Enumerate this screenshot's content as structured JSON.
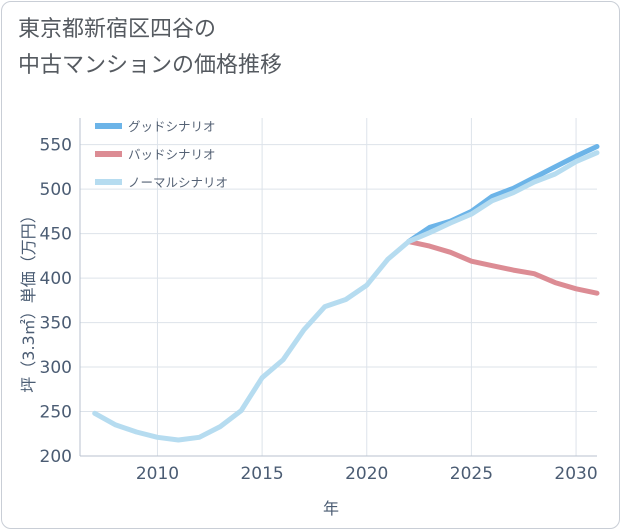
{
  "title_line1": "東京都新宿区四谷の",
  "title_line2": "中古マンションの価格推移",
  "chart_data": {
    "type": "line",
    "xlabel": "年",
    "ylabel": "坪（3.3㎡）単価（万円）",
    "xlim": [
      2006.3,
      2031
    ],
    "ylim": [
      200,
      580
    ],
    "xticks": [
      2010,
      2015,
      2020,
      2025,
      2030
    ],
    "yticks": [
      200,
      250,
      300,
      350,
      400,
      450,
      500,
      550
    ],
    "grid": true,
    "legend_position": "top-left",
    "series": [
      {
        "name": "グッドシナリオ",
        "color": "#6cb4e8",
        "x": [
          2022,
          2023,
          2024,
          2025,
          2026,
          2027,
          2028,
          2029,
          2030,
          2031
        ],
        "y": [
          441,
          457,
          464,
          475,
          492,
          501,
          513,
          525,
          537,
          548
        ]
      },
      {
        "name": "バッドシナリオ",
        "color": "#dc8c94",
        "x": [
          2022,
          2023,
          2024,
          2025,
          2026,
          2027,
          2028,
          2029,
          2030,
          2031
        ],
        "y": [
          441,
          436,
          429,
          419,
          414,
          409,
          405,
          395,
          388,
          383
        ]
      },
      {
        "name": "ノーマルシナリオ",
        "color": "#b6dcf0",
        "x": [
          2007,
          2008,
          2009,
          2010,
          2011,
          2012,
          2013,
          2014,
          2015,
          2016,
          2017,
          2018,
          2019,
          2020,
          2021,
          2022,
          2023,
          2024,
          2025,
          2026,
          2027,
          2028,
          2029,
          2030,
          2031
        ],
        "y": [
          248,
          235,
          227,
          221,
          218,
          221,
          233,
          251,
          288,
          308,
          342,
          368,
          376,
          392,
          421,
          441,
          451,
          462,
          472,
          487,
          496,
          508,
          517,
          531,
          541
        ]
      }
    ]
  }
}
